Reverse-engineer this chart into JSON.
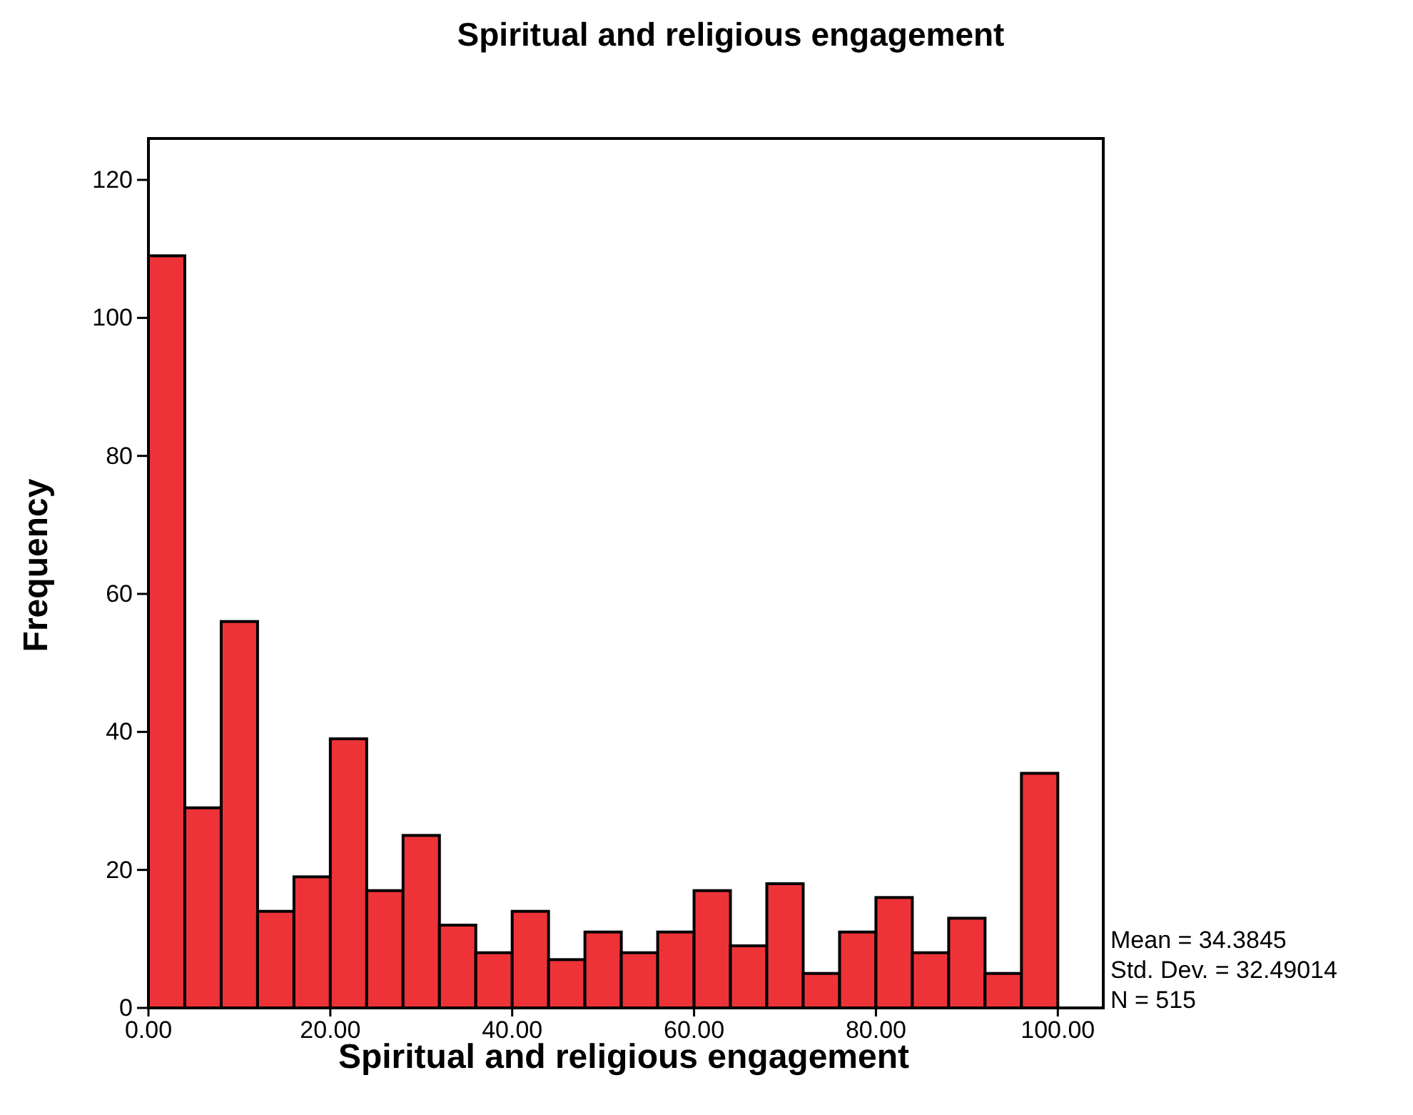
{
  "chart_data": {
    "type": "histogram",
    "title": "Spiritual and religious engagement",
    "xlabel": "Spiritual and religious engagement",
    "ylabel": "Frequency",
    "bins": [
      0,
      4,
      8,
      12,
      16,
      20,
      24,
      28,
      32,
      36,
      40,
      44,
      48,
      52,
      56,
      60,
      64,
      68,
      72,
      76,
      80,
      84,
      88,
      92,
      96,
      100
    ],
    "values": [
      109,
      29,
      56,
      14,
      19,
      39,
      17,
      25,
      12,
      8,
      14,
      7,
      11,
      8,
      11,
      17,
      9,
      18,
      5,
      11,
      16,
      8,
      13,
      5,
      34
    ],
    "color": "#ee3338",
    "xlim": [
      0,
      105
    ],
    "ylim": [
      0,
      126
    ],
    "xticks": [
      {
        "value": 0,
        "label": "0.00"
      },
      {
        "value": 20,
        "label": "20.00"
      },
      {
        "value": 40,
        "label": "40.00"
      },
      {
        "value": 60,
        "label": "60.00"
      },
      {
        "value": 80,
        "label": "80.00"
      },
      {
        "value": 100,
        "label": "100.00"
      }
    ],
    "yticks": [
      0,
      20,
      40,
      60,
      80,
      100,
      120
    ],
    "annotations": [
      "Mean = 34.3845",
      "Std. Dev. = 32.49014",
      "N = 515"
    ],
    "grid": false
  }
}
